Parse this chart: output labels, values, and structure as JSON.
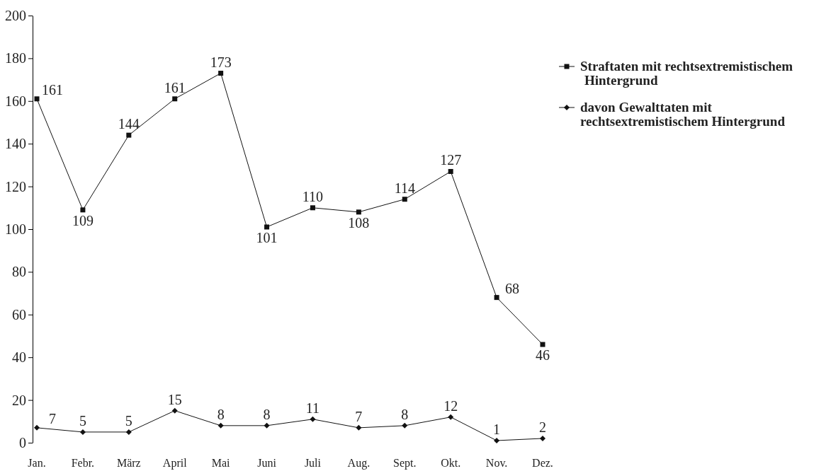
{
  "chart_data": {
    "type": "line",
    "categories": [
      "Jan.",
      "Febr.",
      "März",
      "April",
      "Mai",
      "Juni",
      "Juli",
      "Aug.",
      "Sept.",
      "Okt.",
      "Nov.",
      "Dez."
    ],
    "series": [
      {
        "name": "Straftaten mit rechtsextremistischem Hintergrund",
        "color": "#111111",
        "marker": "square",
        "values": [
          161,
          109,
          144,
          161,
          173,
          101,
          110,
          108,
          114,
          127,
          68,
          46
        ]
      },
      {
        "name": "davon Gewalttaten mit rechtsextremistischem Hintergrund",
        "color": "#111111",
        "marker": "diamond",
        "values": [
          7,
          5,
          5,
          15,
          8,
          8,
          11,
          7,
          8,
          12,
          1,
          2
        ]
      }
    ],
    "ylim": [
      0,
      200
    ],
    "yticks": [
      0,
      20,
      40,
      60,
      80,
      100,
      120,
      140,
      160,
      180,
      200
    ],
    "data_labels": true,
    "legend": "right",
    "grid": false
  }
}
